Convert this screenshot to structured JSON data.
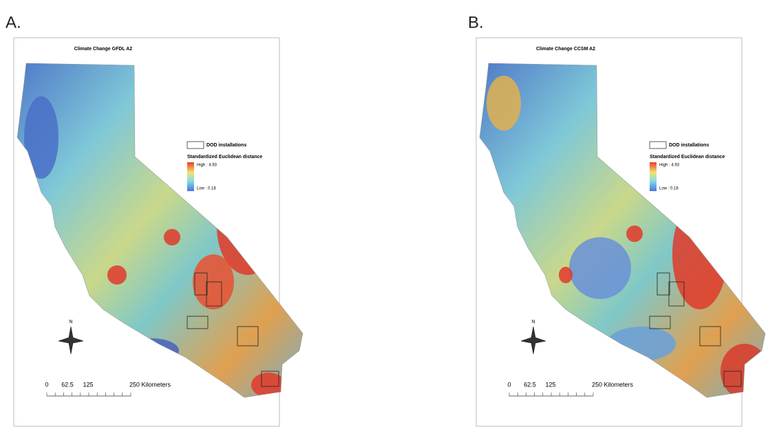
{
  "panels": [
    {
      "label": "A.",
      "title": "Climate Change GFDL A2",
      "legend": {
        "installations": "DOD installations",
        "heading": "Standardized Euclidean distance",
        "high": "High : 4.93",
        "low": "Low : 0.18"
      },
      "north": "N",
      "scale": [
        "0",
        "62.5",
        "125",
        "250 Kilometers"
      ]
    },
    {
      "label": "B.",
      "title": "Climate Change CCSM A2",
      "legend": {
        "installations": "DOD installations",
        "heading": "Standardized Euclidean distance",
        "high": "High : 4.93",
        "low": "Low : 0.18"
      },
      "north": "N",
      "scale": [
        "0",
        "62.5",
        "125",
        "250 Kilometers"
      ]
    }
  ]
}
